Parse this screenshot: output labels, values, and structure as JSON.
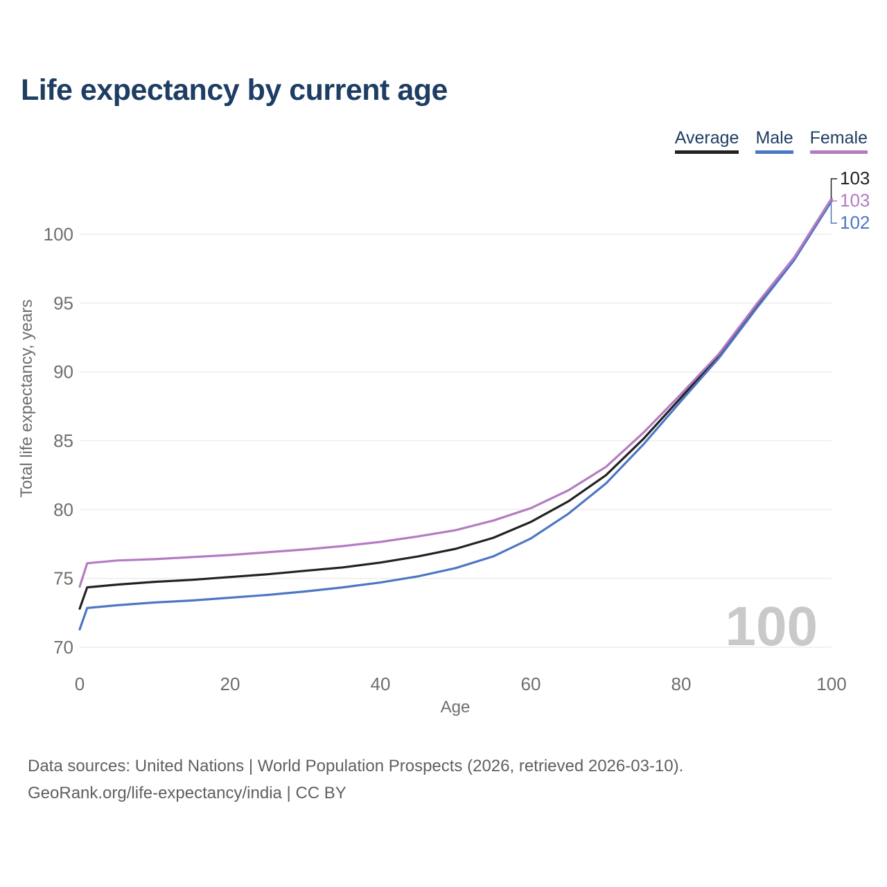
{
  "header": {
    "title": "Life expectancy by current age"
  },
  "legend": {
    "items": [
      {
        "label": "Average",
        "color": "#222222"
      },
      {
        "label": "Male",
        "color": "#4d76c4"
      },
      {
        "label": "Female",
        "color": "#b57bc2"
      }
    ]
  },
  "chart_data": {
    "type": "line",
    "title": "Life expectancy by current age",
    "xlabel": "Age",
    "ylabel": "Total life expectancy, years",
    "xlim": [
      0,
      100
    ],
    "ylim": [
      70,
      103
    ],
    "xticks": [
      0,
      20,
      40,
      60,
      80,
      100
    ],
    "yticks": [
      70,
      75,
      80,
      85,
      90,
      95,
      100
    ],
    "grid": "horizontal",
    "grid_color": "#e3e3e3",
    "tick_color": "#6e6e6e",
    "legend_position": "top-right",
    "watermark": "100",
    "x": [
      0,
      1,
      5,
      10,
      15,
      20,
      25,
      30,
      35,
      40,
      45,
      50,
      55,
      60,
      65,
      70,
      75,
      80,
      85,
      90,
      95,
      100
    ],
    "series": [
      {
        "name": "Average",
        "color": "#222222",
        "end_label": "103",
        "values": [
          72.8,
          74.35,
          74.55,
          74.75,
          74.9,
          75.1,
          75.3,
          75.55,
          75.8,
          76.15,
          76.6,
          77.15,
          77.95,
          79.1,
          80.6,
          82.5,
          85.15,
          88.15,
          91.15,
          94.75,
          98.2,
          102.5
        ]
      },
      {
        "name": "Male",
        "color": "#4d76c4",
        "end_label": "102",
        "values": [
          71.3,
          72.85,
          73.05,
          73.25,
          73.4,
          73.6,
          73.8,
          74.05,
          74.35,
          74.7,
          75.15,
          75.75,
          76.6,
          77.9,
          79.7,
          81.9,
          84.75,
          87.9,
          91.0,
          94.6,
          98.1,
          102.4
        ]
      },
      {
        "name": "Female",
        "color": "#b57bc2",
        "end_label": "103",
        "values": [
          74.4,
          76.1,
          76.3,
          76.4,
          76.55,
          76.7,
          76.9,
          77.1,
          77.35,
          77.65,
          78.05,
          78.5,
          79.2,
          80.1,
          81.4,
          83.1,
          85.6,
          88.4,
          91.3,
          94.9,
          98.3,
          102.6
        ]
      }
    ]
  },
  "footer": {
    "line1": "Data sources: United Nations | World Population Prospects (2026, retrieved 2026-03-10).",
    "line2_link": "GeoRank.org/life-expectancy/india",
    "line2_suffix": " | CC BY"
  }
}
